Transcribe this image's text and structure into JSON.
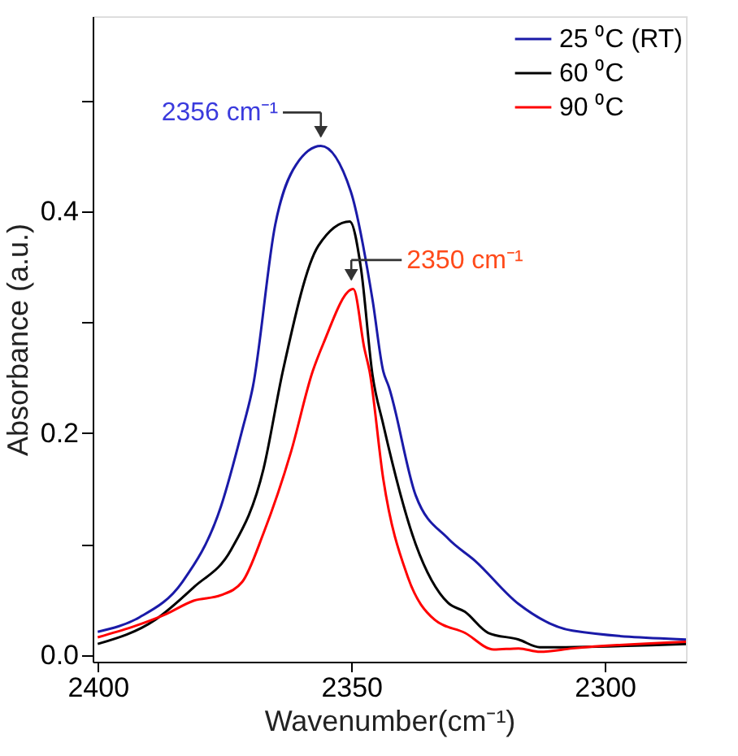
{
  "chart_data": {
    "type": "line",
    "xlabel": "Wavenumber(cm⁻¹)",
    "ylabel": "Absorbance (a.u.)",
    "xlim": [
      2401,
      2284
    ],
    "xticks": [
      2400,
      2350,
      2300
    ],
    "ylim": [
      -0.006,
      0.576
    ],
    "yticks": [
      {
        "value": 0,
        "label": "0.0"
      },
      {
        "value": 0.1,
        "label": null
      },
      0.2,
      {
        "value": 0.3,
        "label": null
      },
      0.4,
      {
        "value": 0.5,
        "label": null
      }
    ],
    "grid": false,
    "legend": "top right",
    "line_style": "solid",
    "marker": "none",
    "series": [
      {
        "name": "25 ⁰C (RT)",
        "color": "#1a1aa8",
        "x": [
          2400,
          2391.8,
          2383.3,
          2375.7,
          2371.5,
          2369.4,
          2365,
          2360.9,
          2356,
          2350.1,
          2345.8,
          2343.7,
          2342.6,
          2337.3,
          2330.9,
          2325.6,
          2317,
          2306.4,
          2284
        ],
        "values": [
          0.021,
          0.034,
          0.066,
          0.134,
          0.203,
          0.242,
          0.388,
          0.442,
          0.459,
          0.418,
          0.32,
          0.256,
          0.242,
          0.144,
          0.105,
          0.085,
          0.046,
          0.022,
          0.014
        ]
      },
      {
        "name": "60 ⁰C",
        "color": "#000000",
        "x": [
          2400,
          2388.6,
          2381.1,
          2373.7,
          2367.3,
          2363.5,
          2356.5,
          2350.3,
          2348.1,
          2345.8,
          2343.7,
          2337.3,
          2330.9,
          2327.6,
          2323,
          2317,
          2312.8,
          2284
        ],
        "values": [
          0.01,
          0.032,
          0.061,
          0.095,
          0.168,
          0.256,
          0.369,
          0.391,
          0.349,
          0.252,
          0.208,
          0.1,
          0.047,
          0.039,
          0.02,
          0.014,
          0.007,
          0.01
        ]
      },
      {
        "name": "90 ⁰C",
        "color": "#ff0000",
        "x": [
          2400,
          2386.5,
          2381.1,
          2375.7,
          2371.5,
          2367.3,
          2361.9,
          2357.6,
          2355.5,
          2349.6,
          2347.4,
          2346.4,
          2343.7,
          2338.9,
          2333.6,
          2327.6,
          2321.9,
          2317,
          2312.8,
          2306.4,
          2284
        ],
        "values": [
          0.016,
          0.037,
          0.049,
          0.054,
          0.066,
          0.11,
          0.183,
          0.256,
          0.281,
          0.33,
          0.276,
          0.256,
          0.159,
          0.071,
          0.032,
          0.02,
          0.005,
          0.006,
          0.003,
          0.006,
          0.012
        ]
      }
    ],
    "annotations": [
      {
        "text": "2356 cm⁻¹",
        "x": 2356,
        "y": 0.459
      },
      {
        "text": "2350 cm⁻¹",
        "x": 2350,
        "y": 0.33
      }
    ]
  }
}
